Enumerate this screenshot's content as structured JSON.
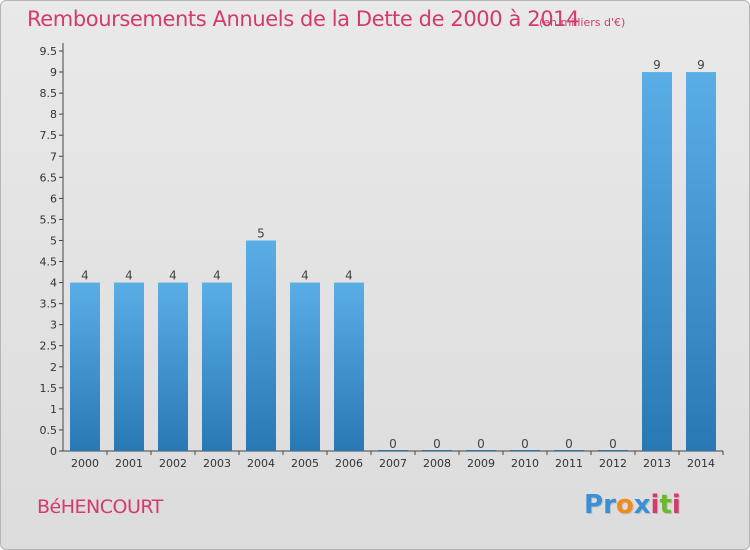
{
  "chart_data": {
    "type": "bar",
    "title": "Remboursements Annuels de la Dette de 2000 à 2014",
    "subtitle": "(en milliers d'€)",
    "categories": [
      "2000",
      "2001",
      "2002",
      "2003",
      "2004",
      "2005",
      "2006",
      "2007",
      "2008",
      "2009",
      "2010",
      "2011",
      "2012",
      "2013",
      "2014"
    ],
    "values": [
      4,
      4,
      4,
      4,
      5,
      4,
      4,
      0,
      0,
      0,
      0,
      0,
      0,
      9,
      9
    ],
    "data_labels": [
      "4",
      "4",
      "4",
      "4",
      "5",
      "4",
      "4",
      "0",
      "0",
      "0",
      "0",
      "0",
      "0",
      "9",
      "9"
    ],
    "y_ticks": [
      "0",
      "0.5",
      "1",
      "1.5",
      "2",
      "2.5",
      "3",
      "3.5",
      "4",
      "4.5",
      "5",
      "5.5",
      "6",
      "6.5",
      "7",
      "7.5",
      "8",
      "8.5",
      "9",
      "9.5"
    ],
    "ylim": [
      0,
      9.5
    ],
    "grid": false,
    "bar_color_top": "#5aaee6",
    "bar_color_bottom": "#2878b4"
  },
  "footer": {
    "commune": "BéHENCOURT",
    "logo_letters": [
      "P",
      "r",
      "o",
      "x",
      "i",
      "t",
      "i"
    ],
    "logo_colors": [
      "#3a8fd6",
      "#3a8fd6",
      "#f08a1c",
      "#3a8fd6",
      "#d23b6c",
      "#6ab82e",
      "#d23b6c"
    ]
  },
  "colors": {
    "title": "#d23b6c",
    "background": "#e3e3e3"
  }
}
